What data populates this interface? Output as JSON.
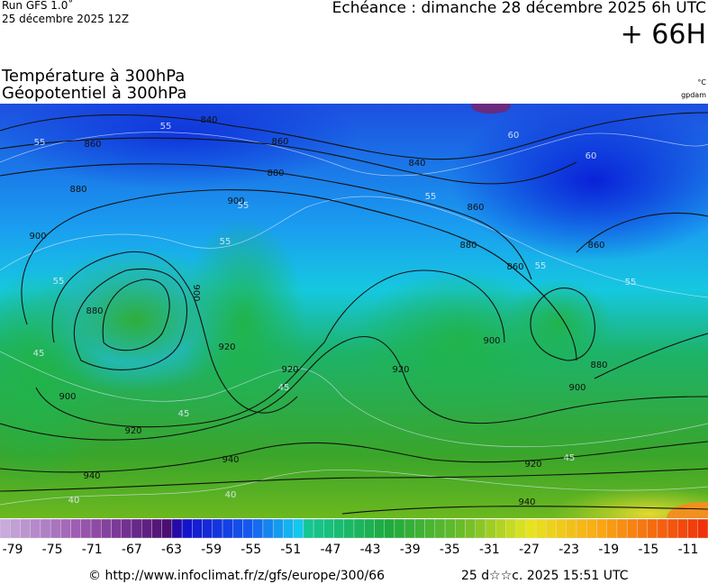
{
  "header": {
    "run": "Run GFS 1.0˚",
    "date": "25 décembre 2025 12Z",
    "echeance": "Echéance : dimanche 28 décembre 2025 6h UTC",
    "offset": "+ 66H"
  },
  "titles": {
    "temperature": "Température à 300hPa",
    "geopotential": "Géopotentiel à 300hPa",
    "temp_unit": "°C",
    "geo_unit": "gpdam"
  },
  "map": {
    "geopotential_labels": [
      840,
      860,
      880,
      900,
      880,
      860,
      840,
      860,
      880,
      900,
      900,
      880,
      920,
      920,
      900,
      920,
      940,
      920,
      900,
      860,
      880,
      900,
      860,
      940,
      920,
      940
    ],
    "temperature_labels": [
      55,
      55,
      60,
      60,
      55,
      55,
      55,
      55,
      55,
      55,
      45,
      45,
      45,
      45,
      40,
      40
    ]
  },
  "colorbar": {
    "labels": [
      -79,
      -75,
      -71,
      -67,
      -63,
      -59,
      -55,
      -51,
      -47,
      -43,
      -39,
      -35,
      -31,
      -27,
      -23,
      -19,
      -15,
      -11
    ]
  },
  "footer": {
    "url": "© http://www.infoclimat.fr/z/gfs/europe/300/66",
    "timestamp": "25 d☆☆c. 2025 15:51 UTC"
  }
}
